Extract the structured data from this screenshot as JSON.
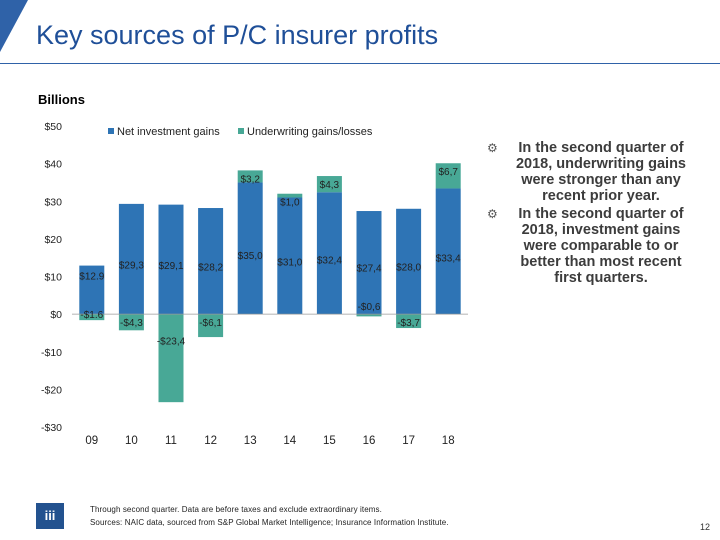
{
  "header": {
    "title": "Key sources of P/C insurer profits"
  },
  "units_label": "Billions",
  "colors": {
    "investment": "#2e74b5",
    "underwriting": "#48a896",
    "title": "#1f4f98"
  },
  "chart_data": {
    "type": "bar",
    "stacked": true,
    "categories": [
      "09",
      "10",
      "11",
      "12",
      "13",
      "14",
      "15",
      "16",
      "17",
      "18"
    ],
    "series": [
      {
        "name": "Net investment gains",
        "values": [
          12.9,
          29.3,
          29.1,
          28.2,
          35.0,
          31.0,
          32.4,
          27.4,
          28.0,
          33.4
        ],
        "labels": [
          "$12.9",
          "$29,3",
          "$29,1",
          "$28,2",
          "$35,0",
          "$31,0",
          "$32,4",
          "$27,4",
          "$28,0",
          "$33,4"
        ]
      },
      {
        "name": "Underwriting gains/losses",
        "values": [
          -1.6,
          -4.3,
          -23.4,
          -6.1,
          3.2,
          1.0,
          4.3,
          -0.6,
          -3.7,
          6.7
        ],
        "labels": [
          "-$1.6",
          "-$4,3",
          "-$23,4",
          "-$6,1",
          "$3,2",
          "$1,0",
          "$4,3",
          "-$0,6",
          "-$3,7",
          "$6,7"
        ]
      }
    ],
    "ylim": [
      -30,
      50
    ],
    "yticks": [
      50,
      40,
      30,
      20,
      10,
      0,
      -10,
      -20,
      -30
    ],
    "ytick_labels": [
      "$50",
      "$40",
      "$30",
      "$20",
      "$10",
      "$0",
      "-$10",
      "-$20",
      "-$30"
    ],
    "legend_position": "top"
  },
  "bullets": [
    "In the second quarter of 2018, underwriting gains were stronger than any recent prior year.",
    "In the second quarter of 2018, investment gains were comparable to or better than most recent first quarters."
  ],
  "footnote": {
    "line1": "Through second quarter. Data are before taxes and exclude extraordinary items.",
    "line2": "Sources: NAIC data, sourced from S&P Global Market Intelligence; Insurance Information Institute."
  },
  "logo_text": "iii",
  "page_number": "12"
}
